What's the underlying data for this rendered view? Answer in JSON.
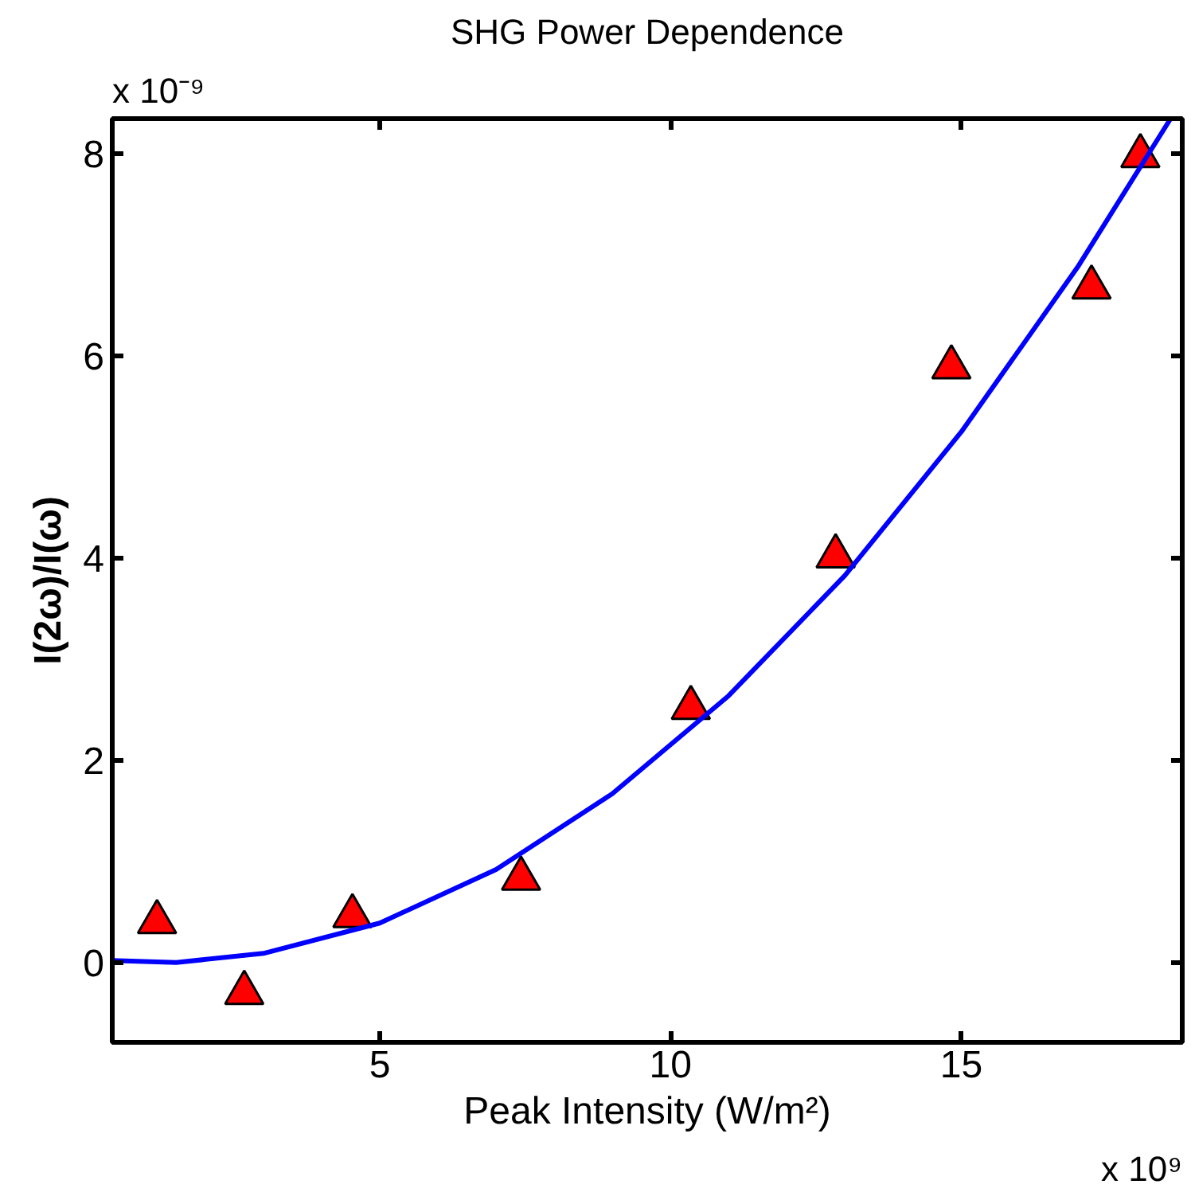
{
  "chart_data": {
    "type": "scatter",
    "title": "SHG Power Dependence",
    "xlabel": "Peak Intensity (W/m²)",
    "ylabel": "I(2ω)/I(ω)",
    "annotations": [
      "x 10⁻⁹",
      "x 10⁹"
    ],
    "xlim": [
      0.4,
      18.8
    ],
    "ylim": [
      -0.79,
      8.35
    ],
    "xticks": [
      5,
      10,
      15
    ],
    "yticks": [
      0,
      2,
      4,
      6,
      8
    ],
    "grid": false,
    "series": [
      {
        "marker": "triangle",
        "color": "#ff0000",
        "x": [
          1.17,
          2.67,
          4.53,
          7.43,
          10.35,
          12.84,
          14.83,
          17.24,
          18.08
        ],
        "values": [
          0.4,
          -0.3,
          0.46,
          0.83,
          2.52,
          4.02,
          5.89,
          6.68,
          7.98
        ]
      },
      {
        "type": "line",
        "marker": "none",
        "line_style": "solid",
        "color": "#0000ff",
        "x": [
          0.4,
          1.5,
          3,
          5,
          7,
          9,
          11,
          13,
          15,
          17,
          18.6
        ],
        "values": [
          0.02,
          0,
          0.09,
          0.39,
          0.92,
          1.67,
          2.64,
          3.83,
          5.25,
          6.88,
          8.35
        ]
      }
    ]
  }
}
